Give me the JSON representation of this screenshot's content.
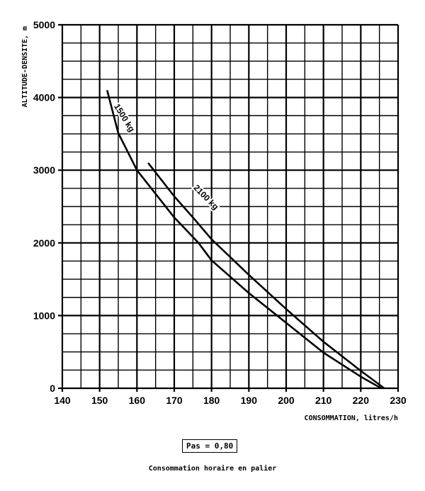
{
  "chart_data": {
    "type": "line",
    "title": "Consommation horaire en palier",
    "xlabel": "CONSOMMATION, litres/h",
    "ylabel": "ALTITUDE-DENSITE, m",
    "xlim": [
      140,
      230
    ],
    "ylim": [
      0,
      5000
    ],
    "xticks": [
      "140",
      "150",
      "160",
      "170",
      "180",
      "190",
      "200",
      "210",
      "220",
      "230"
    ],
    "yticks": [
      "0",
      "1000",
      "2000",
      "3000",
      "4000",
      "5000"
    ],
    "grid": true,
    "annotation": "Pas = 0,80",
    "series": [
      {
        "name": "1500 kg",
        "x": [
          152,
          155,
          160,
          170,
          176.5,
          180,
          190,
          200,
          210,
          220,
          225.5
        ],
        "y": [
          4100,
          3510,
          3000,
          2350,
          2000,
          1760,
          1310,
          900,
          490,
          160,
          0
        ]
      },
      {
        "name": "2100 kg",
        "x": [
          163,
          170,
          175,
          180,
          190,
          200,
          210,
          220,
          226.3
        ],
        "y": [
          3100,
          2640,
          2350,
          2050,
          1560,
          1090,
          640,
          240,
          0
        ]
      }
    ]
  }
}
